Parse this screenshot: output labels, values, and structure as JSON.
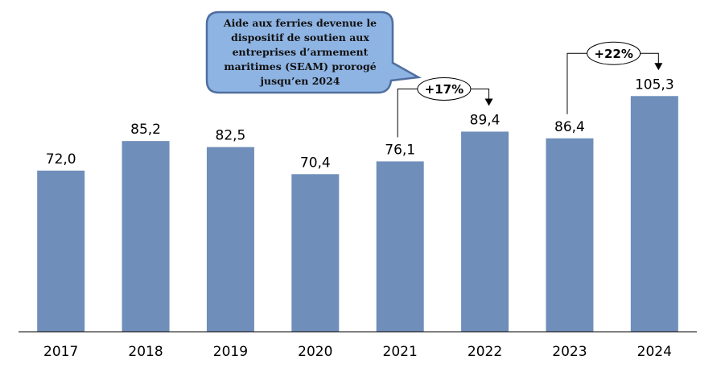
{
  "chart_data": {
    "type": "bar",
    "title": "",
    "xlabel": "",
    "ylabel": "",
    "categories": [
      "2017",
      "2018",
      "2019",
      "2020",
      "2021",
      "2022",
      "2023",
      "2024"
    ],
    "values": [
      72.0,
      85.2,
      82.5,
      70.4,
      76.1,
      89.4,
      86.4,
      105.3
    ],
    "value_labels": [
      "72,0",
      "85,2",
      "82,5",
      "70,4",
      "76,1",
      "89,4",
      "86,4",
      "105,3"
    ],
    "ylim": [
      0,
      110
    ],
    "grid": false,
    "bar_color": "#6F8EBA",
    "annotations": [
      {
        "type": "growth",
        "from": "2021",
        "to": "2022",
        "label": "+17%"
      },
      {
        "type": "growth",
        "from": "2023",
        "to": "2024",
        "label": "+22%"
      }
    ],
    "callout": {
      "text": "Aide aux ferries devenue le dispositif de soutien aux entreprises d’armement maritimes (SEAM) prorogé jusqu’en 2024",
      "fill": "#8EB4E3",
      "border": "#4F6E9F"
    }
  }
}
